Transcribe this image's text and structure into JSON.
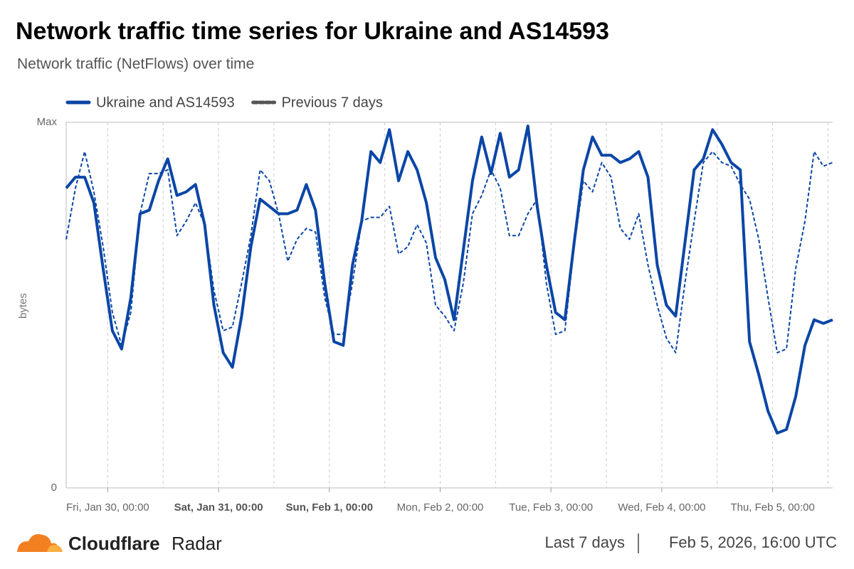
{
  "chart_data": {
    "type": "line",
    "title": "Network traffic time series for Ukraine and AS14593",
    "subtitle": "Network traffic (NetFlows) over time",
    "y_label": "bytes",
    "x": [
      -9,
      -7,
      -5,
      -3,
      -1,
      1,
      3,
      5,
      7,
      9,
      11,
      13,
      15,
      17,
      19,
      21,
      23,
      25,
      27,
      29,
      31,
      33,
      35,
      37,
      39,
      41,
      43,
      45,
      47,
      49,
      51,
      53,
      55,
      57,
      59,
      61,
      63,
      65,
      67,
      69,
      71,
      73,
      75,
      77,
      79,
      81,
      83,
      85,
      87,
      89,
      91,
      93,
      95,
      97,
      99,
      101,
      103,
      105,
      107,
      109,
      111,
      113,
      115,
      117,
      119,
      121,
      123,
      125,
      127,
      129,
      131,
      133,
      135,
      137,
      139,
      141,
      143,
      145,
      147,
      149,
      151,
      153,
      155,
      157
    ],
    "series": [
      {
        "name": "Ukraine and AS14593",
        "color": "#0a46a6",
        "style": "solid",
        "values": [
          0.82,
          0.85,
          0.85,
          0.78,
          0.6,
          0.43,
          0.38,
          0.52,
          0.75,
          0.76,
          0.84,
          0.9,
          0.8,
          0.81,
          0.83,
          0.72,
          0.5,
          0.37,
          0.33,
          0.47,
          0.66,
          0.79,
          0.77,
          0.75,
          0.75,
          0.76,
          0.83,
          0.76,
          0.56,
          0.4,
          0.39,
          0.61,
          0.73,
          0.92,
          0.89,
          0.98,
          0.84,
          0.92,
          0.87,
          0.78,
          0.63,
          0.57,
          0.46,
          0.65,
          0.84,
          0.96,
          0.86,
          0.97,
          0.85,
          0.87,
          0.99,
          0.77,
          0.61,
          0.48,
          0.46,
          0.67,
          0.87,
          0.96,
          0.91,
          0.91,
          0.89,
          0.9,
          0.92,
          0.85,
          0.61,
          0.5,
          0.47,
          0.67,
          0.87,
          0.9,
          0.98,
          0.94,
          0.89,
          0.87,
          0.4,
          0.31,
          0.21,
          0.15,
          0.16,
          0.25,
          0.39,
          0.46,
          0.45,
          0.46
        ]
      },
      {
        "name": "Previous 7 days",
        "color": "#0a46a6",
        "style": "dashed",
        "values": [
          0.68,
          0.82,
          0.92,
          0.81,
          0.66,
          0.48,
          0.39,
          0.48,
          0.75,
          0.86,
          0.86,
          0.87,
          0.69,
          0.73,
          0.78,
          0.72,
          0.54,
          0.43,
          0.44,
          0.56,
          0.69,
          0.87,
          0.84,
          0.75,
          0.62,
          0.68,
          0.71,
          0.7,
          0.52,
          0.42,
          0.42,
          0.56,
          0.73,
          0.74,
          0.74,
          0.77,
          0.64,
          0.66,
          0.72,
          0.67,
          0.5,
          0.47,
          0.43,
          0.56,
          0.75,
          0.8,
          0.87,
          0.82,
          0.69,
          0.69,
          0.75,
          0.79,
          0.56,
          0.42,
          0.43,
          0.66,
          0.84,
          0.81,
          0.89,
          0.85,
          0.71,
          0.68,
          0.75,
          0.61,
          0.5,
          0.41,
          0.37,
          0.56,
          0.73,
          0.89,
          0.92,
          0.89,
          0.88,
          0.83,
          0.79,
          0.68,
          0.52,
          0.37,
          0.38,
          0.6,
          0.73,
          0.92,
          0.88,
          0.89
        ]
      }
    ],
    "xlim": [
      -9,
      157
    ],
    "xticks": [
      {
        "value": 0,
        "label": "Fri, Jan 30, 00:00"
      },
      {
        "value": 24,
        "label": "Sat, Jan 31, 00:00"
      },
      {
        "value": 48,
        "label": "Sun, Feb 1, 00:00"
      },
      {
        "value": 72,
        "label": "Mon, Feb 2, 00:00"
      },
      {
        "value": 96,
        "label": "Tue, Feb 3, 00:00"
      },
      {
        "value": 120,
        "label": "Wed, Feb 4, 00:00"
      },
      {
        "value": 144,
        "label": "Thu, Feb 5, 00:00"
      }
    ],
    "xminor": [
      12,
      36,
      60,
      84,
      108,
      132,
      156
    ],
    "ylim": [
      0,
      1
    ],
    "yticks": [
      0,
      {
        "value": 1,
        "label": "Max"
      }
    ],
    "grid": true,
    "legend": "top-left"
  },
  "footer": {
    "brand": "Cloudflare",
    "product": "Radar",
    "range": "Last 7 days",
    "timestamp": "Feb 5, 2026, 16:00 UTC"
  }
}
